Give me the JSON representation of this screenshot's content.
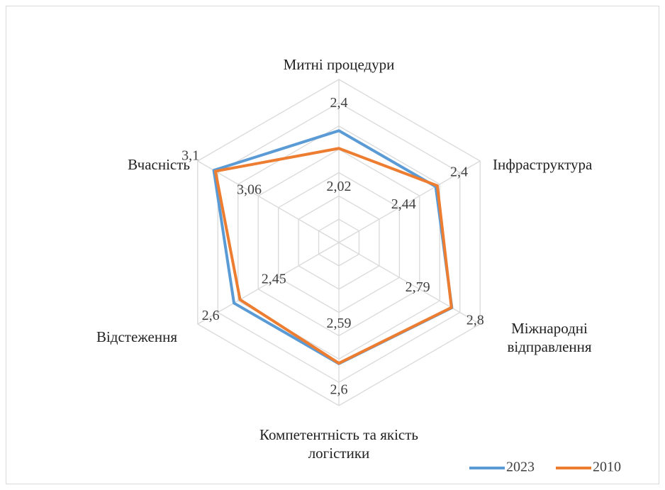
{
  "chart_data": {
    "type": "radar",
    "categories": [
      "Митні процедури",
      "Інфраструктура",
      "Міжнародні відправлення",
      "Компетентність та якість логістики",
      "Відстеження",
      "Вчасність"
    ],
    "series": [
      {
        "name": "2023",
        "color": "#5b9bd5",
        "values": [
          2.4,
          2.4,
          2.8,
          2.6,
          2.6,
          3.1
        ],
        "value_labels": [
          "2,4",
          "2,4",
          "2,8",
          "2,6",
          "2,6",
          "3,1"
        ]
      },
      {
        "name": "2010",
        "color": "#ed7d31",
        "values": [
          2.02,
          2.44,
          2.79,
          2.59,
          2.45,
          3.06
        ],
        "value_labels": [
          "2,02",
          "2,44",
          "2,79",
          "2,59",
          "2,45",
          "3,06"
        ]
      }
    ],
    "ylim": [
      0,
      3.5
    ],
    "yticks": [
      0,
      0.5,
      1,
      1.5,
      2,
      2.5,
      3,
      3.5
    ],
    "grid": true,
    "legend": "bottom-right"
  }
}
